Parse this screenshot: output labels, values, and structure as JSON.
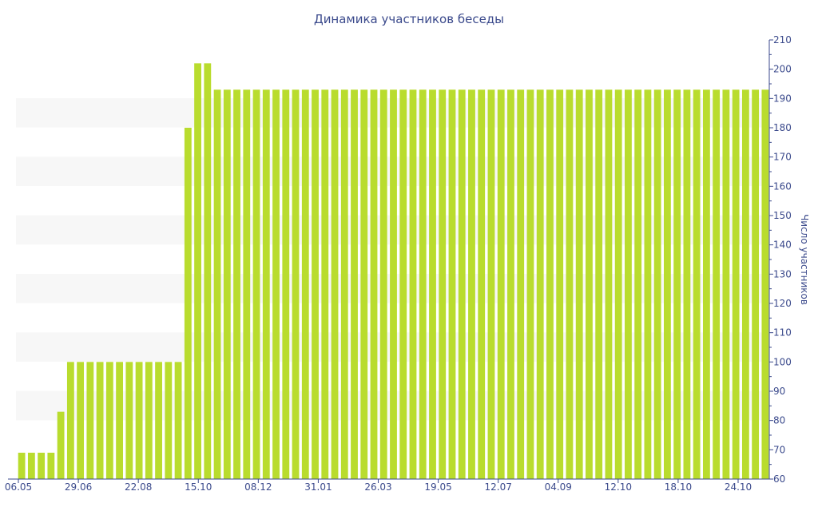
{
  "chart_data": {
    "type": "bar",
    "title": "Динамика участников беседы",
    "xlabel": "",
    "ylabel": "Число участников",
    "ylim": [
      60,
      210
    ],
    "yticks": [
      60,
      70,
      80,
      90,
      100,
      110,
      120,
      130,
      140,
      150,
      160,
      170,
      180,
      190,
      200,
      210
    ],
    "y_axis_side": "right",
    "grid": "alternating horizontal bands",
    "x_tick_labels": [
      "06.05",
      "29.06",
      "22.08",
      "15.10",
      "08.12",
      "31.01",
      "26.03",
      "19.05",
      "12.07",
      "04.09",
      "12.10",
      "18.10",
      "24.10"
    ],
    "series": [
      {
        "values": [
          69,
          69,
          69,
          69,
          83,
          100,
          100,
          100,
          100,
          100,
          100,
          100,
          100,
          100,
          100,
          100,
          100,
          180,
          202,
          202,
          193,
          193,
          193,
          193,
          193,
          193,
          193,
          193,
          193,
          193,
          193,
          193,
          193,
          193,
          193,
          193,
          193,
          193,
          193,
          193,
          193,
          193,
          193,
          193,
          193,
          193,
          193,
          193,
          193,
          193,
          193,
          193,
          193,
          193,
          193,
          193,
          193,
          193,
          193,
          193,
          193,
          193,
          193,
          193,
          193,
          193,
          193,
          193,
          193,
          193,
          193,
          193,
          193,
          193,
          193,
          193,
          193
        ],
        "color": "#b9dc2e"
      }
    ]
  }
}
